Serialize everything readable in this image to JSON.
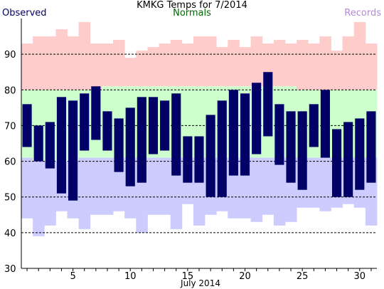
{
  "chart_data": {
    "type": "bar",
    "title": "KMKG Temps for 7/2014",
    "xlabel": "July 2014",
    "ylabel": "",
    "legend": {
      "observed": "Observed",
      "normals": "Normals",
      "records": "Records",
      "placement": "top"
    },
    "colors": {
      "observed": "#000066",
      "normals": "#ccffcc",
      "record_high": "#ffcccc",
      "record_low": "#ccccff",
      "grid": "#000000"
    },
    "ylim": [
      30,
      100
    ],
    "yticks": [
      30,
      40,
      50,
      60,
      70,
      80,
      90
    ],
    "xticks": [
      5,
      10,
      15,
      20,
      25,
      30
    ],
    "grid": true,
    "days": [
      1,
      2,
      3,
      4,
      5,
      6,
      7,
      8,
      9,
      10,
      11,
      12,
      13,
      14,
      15,
      16,
      17,
      18,
      19,
      20,
      21,
      22,
      23,
      24,
      25,
      26,
      27,
      28,
      29,
      30,
      31
    ],
    "series": [
      {
        "name": "Observed",
        "high": [
          76,
          70,
          71,
          78,
          77,
          79,
          81,
          74,
          72,
          75,
          78,
          78,
          77,
          79,
          67,
          67,
          73,
          77,
          80,
          79,
          82,
          85,
          76,
          74,
          74,
          76,
          80,
          69,
          71,
          72,
          74
        ],
        "low": [
          64,
          60,
          58,
          51,
          49,
          63,
          66,
          63,
          57,
          53,
          54,
          62,
          63,
          56,
          54,
          54,
          50,
          50,
          56,
          56,
          62,
          67,
          59,
          54,
          52,
          64,
          61,
          50,
          50,
          52,
          54
        ]
      },
      {
        "name": "Normals",
        "high": [
          80,
          80,
          80,
          80,
          80,
          80,
          80,
          81,
          81,
          81,
          81,
          81,
          81,
          81,
          81,
          81,
          81,
          81,
          81,
          81,
          81,
          81,
          81,
          81,
          80,
          80,
          80,
          80,
          80,
          80,
          80
        ],
        "low": [
          61,
          60,
          60,
          60,
          60,
          61,
          61,
          61,
          61,
          61,
          61,
          61,
          61,
          61,
          61,
          61,
          61,
          61,
          61,
          61,
          61,
          61,
          61,
          61,
          61,
          61,
          61,
          61,
          61,
          61,
          61
        ]
      },
      {
        "name": "Records",
        "high": [
          93,
          95,
          95,
          97,
          95,
          99,
          93,
          93,
          94,
          89,
          91,
          92,
          93,
          94,
          93,
          95,
          95,
          92,
          94,
          92,
          95,
          93,
          94,
          93,
          94,
          93,
          95,
          91,
          95,
          99,
          93
        ],
        "low": [
          44,
          39,
          42,
          46,
          44,
          41,
          45,
          45,
          46,
          44,
          40,
          45,
          45,
          41,
          48,
          42,
          45,
          46,
          44,
          44,
          43,
          45,
          42,
          43,
          47,
          47,
          46,
          47,
          48,
          47,
          42
        ]
      }
    ]
  }
}
